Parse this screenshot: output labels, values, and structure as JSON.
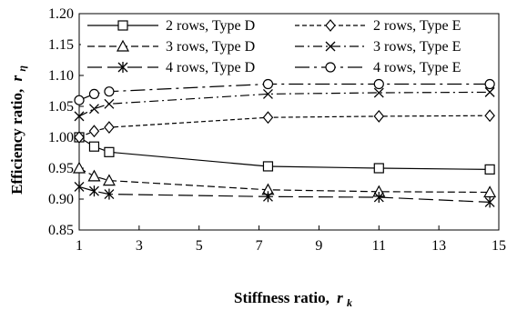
{
  "chart_data": {
    "type": "line",
    "xlabel": "Stiffness ratio,",
    "xlabel_symbol": "r",
    "xlabel_subscript": "k",
    "ylabel": "Efficiency ratio,",
    "ylabel_symbol": "r",
    "ylabel_subscript": "η",
    "xlim": [
      1,
      15
    ],
    "ylim": [
      0.85,
      1.2
    ],
    "xticks": [
      "1",
      "3",
      "5",
      "7",
      "9",
      "11",
      "13",
      "15"
    ],
    "yticks": [
      "0.85",
      "0.90",
      "0.95",
      "1.00",
      "1.05",
      "1.10",
      "1.15",
      "1.20"
    ],
    "grid": false,
    "legend_position": "top",
    "legend_columns": 2,
    "x": [
      1,
      1.5,
      2,
      7.3,
      11,
      14.7
    ],
    "series": [
      {
        "name": "2 rows, Type D",
        "dash": "solid",
        "marker": "square",
        "values": [
          1.0,
          0.985,
          0.976,
          0.953,
          0.95,
          0.948
        ]
      },
      {
        "name": "2 rows, Type E",
        "dash": "short-dash",
        "marker": "diamond",
        "values": [
          1.0,
          1.01,
          1.016,
          1.032,
          1.034,
          1.035
        ]
      },
      {
        "name": "3 rows, Type D",
        "dash": "dash",
        "marker": "triangle",
        "values": [
          0.95,
          0.937,
          0.93,
          0.915,
          0.912,
          0.911
        ]
      },
      {
        "name": "3 rows, Type E",
        "dash": "dash-dot",
        "marker": "x",
        "values": [
          1.034,
          1.046,
          1.054,
          1.07,
          1.072,
          1.073
        ]
      },
      {
        "name": "4 rows, Type D",
        "dash": "long-dash",
        "marker": "asterisk",
        "values": [
          0.92,
          0.913,
          0.908,
          0.904,
          0.903,
          0.895
        ]
      },
      {
        "name": "4 rows, Type E",
        "dash": "long-dash-dot",
        "marker": "circle",
        "values": [
          1.06,
          1.07,
          1.074,
          1.086,
          1.086,
          1.086
        ]
      }
    ]
  }
}
